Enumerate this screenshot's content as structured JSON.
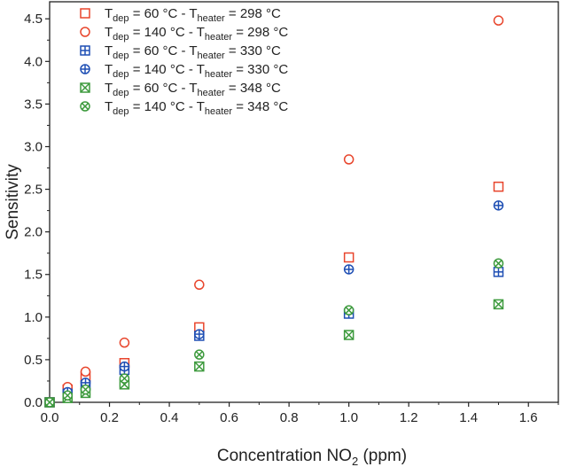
{
  "chart_data": {
    "type": "scatter",
    "title": "",
    "xlabel": {
      "main": "Concentration NO",
      "sub": "2",
      "unit": " (ppm)"
    },
    "ylabel": "Sensitivity",
    "xlim": [
      0,
      1.7
    ],
    "ylim": [
      0,
      4.7
    ],
    "x_ticks": [
      0.0,
      0.2,
      0.4,
      0.6,
      0.8,
      1.0,
      1.2,
      1.4,
      1.6
    ],
    "x_tick_labels": [
      "0.0",
      "0.2",
      "0.4",
      "0.6",
      "0.8",
      "1.0",
      "1.2",
      "1.4",
      "1.6"
    ],
    "y_ticks": [
      0.0,
      0.5,
      1.0,
      1.5,
      2.0,
      2.5,
      3.0,
      3.5,
      4.0,
      4.5
    ],
    "y_tick_labels": [
      "0.0",
      "0.5",
      "1.0",
      "1.5",
      "2.0",
      "2.5",
      "3.0",
      "3.5",
      "4.0",
      "4.5"
    ],
    "grid": false,
    "legend_position": "top-left",
    "x": [
      0.0,
      0.06,
      0.12,
      0.25,
      0.5,
      1.0,
      1.5
    ],
    "series": [
      {
        "legend": {
          "t": "T",
          "dep_sub": "dep",
          "mid": " = 60 °C - T",
          "heater_sub": "heater",
          "end": " = 298 °C"
        },
        "marker": "square-open",
        "color": "#e8452c",
        "values": [
          0.0,
          0.15,
          0.3,
          0.46,
          0.88,
          1.7,
          2.53
        ]
      },
      {
        "legend": {
          "t": "T",
          "dep_sub": "dep",
          "mid": " = 140 °C - T",
          "heater_sub": "heater",
          "end": " = 298 °C"
        },
        "marker": "circle-open",
        "color": "#e8452c",
        "values": [
          0.0,
          0.18,
          0.36,
          0.7,
          1.38,
          2.85,
          4.48
        ]
      },
      {
        "legend": {
          "t": "T",
          "dep_sub": "dep",
          "mid": " = 60 °C - T",
          "heater_sub": "heater",
          "end": " = 330 °C"
        },
        "marker": "square-plus",
        "color": "#1f4fb4",
        "values": [
          0.0,
          0.1,
          0.2,
          0.38,
          0.78,
          1.04,
          1.53
        ]
      },
      {
        "legend": {
          "t": "T",
          "dep_sub": "dep",
          "mid": " = 140 °C - T",
          "heater_sub": "heater",
          "end": " = 330 °C"
        },
        "marker": "circle-plus",
        "color": "#1f4fb4",
        "values": [
          0.0,
          0.12,
          0.23,
          0.42,
          0.8,
          1.56,
          2.31
        ]
      },
      {
        "legend": {
          "t": "T",
          "dep_sub": "dep",
          "mid": " = 60 °C - T",
          "heater_sub": "heater",
          "end": " = 348 °C"
        },
        "marker": "square-x",
        "color": "#3d9a3d",
        "values": [
          0.0,
          0.05,
          0.11,
          0.21,
          0.42,
          0.79,
          1.15
        ]
      },
      {
        "legend": {
          "t": "T",
          "dep_sub": "dep",
          "mid": " = 140 °C - T",
          "heater_sub": "heater",
          "end": " = 348 °C"
        },
        "marker": "circle-x",
        "color": "#3d9a3d",
        "values": [
          0.0,
          0.08,
          0.15,
          0.28,
          0.56,
          1.08,
          1.63
        ]
      }
    ]
  }
}
